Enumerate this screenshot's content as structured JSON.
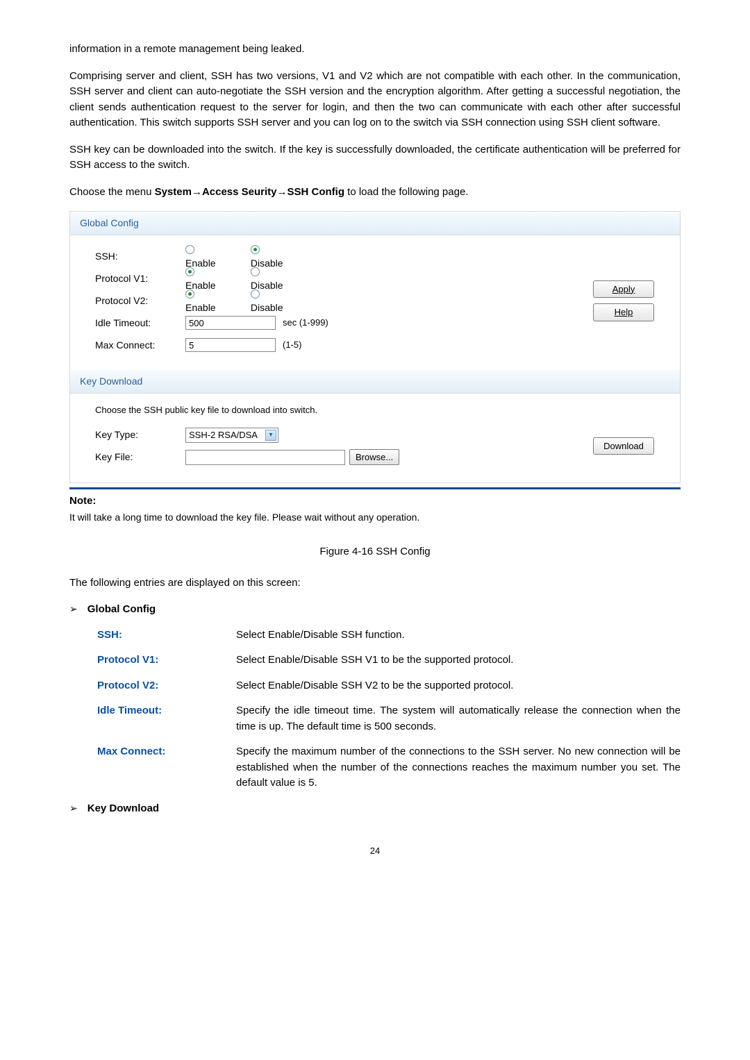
{
  "intro": {
    "p1": "information in a remote management being leaked.",
    "p2": "Comprising server and client, SSH has two versions, V1 and V2 which are not compatible with each other. In the communication, SSH server and client can auto-negotiate the SSH version and the encryption algorithm. After getting a successful negotiation, the client sends authentication request to the server for login, and then the two can communicate with each other after successful authentication. This switch supports SSH server and you can log on to the switch via SSH connection using SSH client software.",
    "p3": "SSH key can be downloaded into the switch. If the key is successfully downloaded, the certificate authentication will be preferred for SSH access to the switch.",
    "p4_pre": "Choose the menu ",
    "p4_path": "System→Access Seurity→SSH Config",
    "p4_post": " to load the following page."
  },
  "panel": {
    "global": {
      "header": "Global Config",
      "ssh_label": "SSH:",
      "v1_label": "Protocol V1:",
      "v2_label": "Protocol V2:",
      "idle_label": "Idle Timeout:",
      "max_label": "Max Connect:",
      "enable": "Enable",
      "disable": "Disable",
      "idle_value": "500",
      "idle_suffix": "sec (1-999)",
      "max_value": "5",
      "max_suffix": "(1-5)",
      "apply": "Apply",
      "help": "Help"
    },
    "keydl": {
      "header": "Key Download",
      "instr": "Choose the SSH public key file to download into switch.",
      "keytype_label": "Key Type:",
      "keytype_value": "SSH-2 RSA/DSA",
      "keyfile_label": "Key File:",
      "browse": "Browse...",
      "download": "Download"
    }
  },
  "note": {
    "hd": "Note:",
    "txt": "It will take a long time to download the key file. Please wait without any operation."
  },
  "figure_caption": "Figure 4-16 SSH Config",
  "entries_intro": "The following entries are displayed on this screen:",
  "sections": {
    "global_title": "Global Config",
    "keydl_title": "Key Download"
  },
  "entries": {
    "ssh": {
      "k": "SSH:",
      "v": "Select Enable/Disable SSH function."
    },
    "v1": {
      "k": "Protocol V1:",
      "v": "Select Enable/Disable SSH V1 to be the supported protocol."
    },
    "v2": {
      "k": "Protocol V2:",
      "v": "Select Enable/Disable SSH V2 to be the supported protocol."
    },
    "idle": {
      "k": "Idle Timeout:",
      "v": "Specify the idle timeout time. The system will automatically release the connection when the time is up. The default time is 500 seconds."
    },
    "max": {
      "k": "Max Connect:",
      "v": "Specify the maximum number of the connections to the SSH server. No new connection will be established when the number of the connections reaches the maximum number you set. The default value is 5."
    }
  },
  "page_number": "24"
}
